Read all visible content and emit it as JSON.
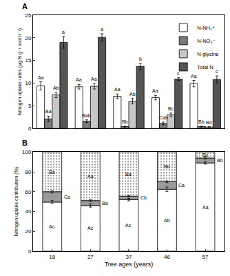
{
  "chart_data": [
    {
      "panel": "A",
      "type": "bar",
      "categories": [
        "18",
        "27",
        "37",
        "46",
        "57"
      ],
      "y_label": "Nitrogen uptake rates (μg N g⁻¹ root h⁻¹)",
      "ylim": [
        0,
        25
      ],
      "yticks": [
        0,
        5,
        10,
        15,
        20,
        25
      ],
      "legend": "upper right",
      "tick_labels": "y",
      "grid": false,
      "series": [
        {
          "name": "N-NH₄⁺",
          "color": "#ffffff",
          "values": [
            9.4,
            9.2,
            7.1,
            6.8,
            9.9
          ],
          "errors": [
            0.9,
            0.5,
            0.5,
            0.5,
            0.7
          ],
          "letters": [
            "Aa",
            "Aa",
            "Aa",
            "Aa",
            "Aa"
          ]
        },
        {
          "name": "N-NO₃⁻",
          "color": "#7a7a7a",
          "values": [
            2.1,
            1.6,
            0.4,
            1.1,
            0.4
          ],
          "errors": [
            0.6,
            0.3,
            0.1,
            0.3,
            0.1
          ],
          "letters": [
            "Ba",
            "Bab",
            "Bb",
            "Cab",
            "Bb"
          ]
        },
        {
          "name": "N-glycine",
          "color": "#c8c8c8",
          "values": [
            7.4,
            9.3,
            6.0,
            3.0,
            0.3
          ],
          "errors": [
            0.6,
            0.6,
            0.6,
            0.4,
            0.1
          ],
          "letters": [
            "Ab",
            "Aa",
            "Ab",
            "Bc",
            "Bd"
          ]
        },
        {
          "name": "Total N",
          "color": "#555555",
          "values": [
            19.0,
            20.1,
            13.7,
            10.9,
            10.8
          ],
          "errors": [
            1.3,
            0.8,
            0.7,
            0.3,
            0.8
          ],
          "letters": [
            "a",
            "a",
            "b",
            "c",
            "c"
          ]
        }
      ]
    },
    {
      "panel": "B",
      "type": "bar",
      "stacked": true,
      "categories": [
        "18",
        "27",
        "37",
        "46",
        "57"
      ],
      "x_label": "Tree ages (years)",
      "y_label": "Nitrogen uptake contribution (%)",
      "ylim": [
        0,
        100
      ],
      "yticks": [
        0,
        20,
        40,
        60,
        80,
        100
      ],
      "grid": false,
      "series": [
        {
          "color": "#ffffff",
          "values": [
            49.5,
            46,
            52,
            62.5,
            89
          ],
          "errors": [
            1.5,
            1.6,
            1.2,
            2.2,
            1.2
          ],
          "letters": [
            "Ac",
            "Ac",
            "Ac",
            "Ab",
            "Aa"
          ]
        },
        {
          "color": "#9a9a9a",
          "values": [
            10.5,
            5,
            3.5,
            7.5,
            5
          ],
          "errors": [
            1.3,
            0.8,
            0.6,
            0.9,
            1.0
          ],
          "letters": [
            "Ca",
            "Ba",
            "Cb",
            "Ca",
            "Bb"
          ]
        },
        {
          "color": "#ffffff",
          "values": [
            40,
            49,
            44.5,
            30,
            6
          ],
          "letters": [
            "Ba",
            "Aa",
            "Ba",
            "Bb",
            "Bc"
          ]
        }
      ]
    }
  ]
}
